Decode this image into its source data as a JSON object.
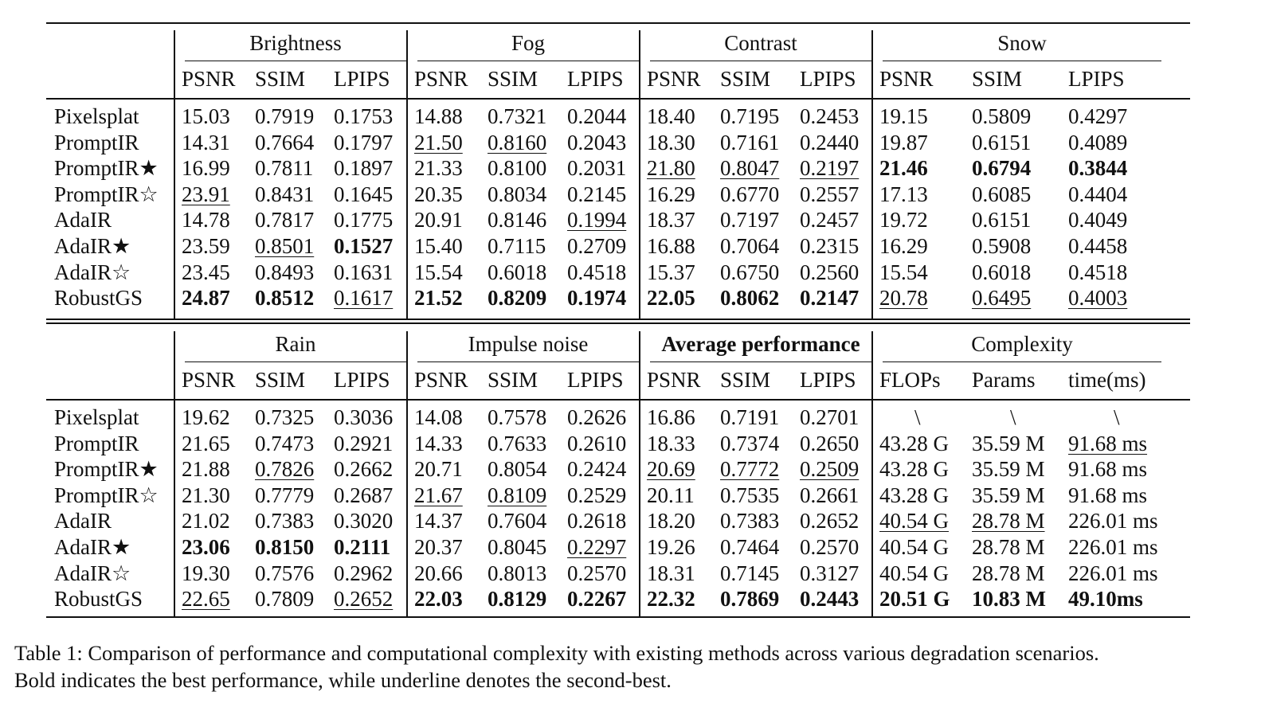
{
  "table": {
    "top_block": {
      "groups": [
        {
          "label": "Brightness",
          "bold": false
        },
        {
          "label": "Fog",
          "bold": false
        },
        {
          "label": "Contrast",
          "bold": false
        },
        {
          "label": "Snow",
          "bold": false
        }
      ],
      "subheaders": [
        "PSNR",
        "SSIM",
        "LPIPS",
        "PSNR",
        "SSIM",
        "LPIPS",
        "PSNR",
        "SSIM",
        "LPIPS",
        "PSNR",
        "SSIM",
        "LPIPS"
      ],
      "rows": [
        {
          "method": "Pixelsplat",
          "cells": [
            {
              "v": "15.03",
              "s": ""
            },
            {
              "v": "0.7919",
              "s": ""
            },
            {
              "v": "0.1753",
              "s": ""
            },
            {
              "v": "14.88",
              "s": ""
            },
            {
              "v": "0.7321",
              "s": ""
            },
            {
              "v": "0.2044",
              "s": ""
            },
            {
              "v": "18.40",
              "s": ""
            },
            {
              "v": "0.7195",
              "s": ""
            },
            {
              "v": "0.2453",
              "s": ""
            },
            {
              "v": "19.15",
              "s": ""
            },
            {
              "v": "0.5809",
              "s": ""
            },
            {
              "v": "0.4297",
              "s": ""
            }
          ]
        },
        {
          "method": "PromptIR",
          "cells": [
            {
              "v": "14.31",
              "s": ""
            },
            {
              "v": "0.7664",
              "s": ""
            },
            {
              "v": "0.1797",
              "s": ""
            },
            {
              "v": "21.50",
              "s": "u"
            },
            {
              "v": "0.8160",
              "s": "u"
            },
            {
              "v": "0.2043",
              "s": ""
            },
            {
              "v": "18.30",
              "s": ""
            },
            {
              "v": "0.7161",
              "s": ""
            },
            {
              "v": "0.2440",
              "s": ""
            },
            {
              "v": "19.87",
              "s": ""
            },
            {
              "v": "0.6151",
              "s": ""
            },
            {
              "v": "0.4089",
              "s": ""
            }
          ]
        },
        {
          "method": "PromptIR★",
          "cells": [
            {
              "v": "16.99",
              "s": ""
            },
            {
              "v": "0.7811",
              "s": ""
            },
            {
              "v": "0.1897",
              "s": ""
            },
            {
              "v": "21.33",
              "s": ""
            },
            {
              "v": "0.8100",
              "s": ""
            },
            {
              "v": "0.2031",
              "s": ""
            },
            {
              "v": "21.80",
              "s": "u"
            },
            {
              "v": "0.8047",
              "s": "u"
            },
            {
              "v": "0.2197",
              "s": "u"
            },
            {
              "v": "21.46",
              "s": "b"
            },
            {
              "v": "0.6794",
              "s": "b"
            },
            {
              "v": "0.3844",
              "s": "b"
            }
          ]
        },
        {
          "method": "PromptIR☆",
          "cells": [
            {
              "v": "23.91",
              "s": "u"
            },
            {
              "v": "0.8431",
              "s": ""
            },
            {
              "v": "0.1645",
              "s": ""
            },
            {
              "v": "20.35",
              "s": ""
            },
            {
              "v": "0.8034",
              "s": ""
            },
            {
              "v": "0.2145",
              "s": ""
            },
            {
              "v": "16.29",
              "s": ""
            },
            {
              "v": "0.6770",
              "s": ""
            },
            {
              "v": "0.2557",
              "s": ""
            },
            {
              "v": "17.13",
              "s": ""
            },
            {
              "v": "0.6085",
              "s": ""
            },
            {
              "v": "0.4404",
              "s": ""
            }
          ]
        },
        {
          "method": "AdaIR",
          "cells": [
            {
              "v": "14.78",
              "s": ""
            },
            {
              "v": "0.7817",
              "s": ""
            },
            {
              "v": "0.1775",
              "s": ""
            },
            {
              "v": "20.91",
              "s": ""
            },
            {
              "v": "0.8146",
              "s": ""
            },
            {
              "v": "0.1994",
              "s": "u"
            },
            {
              "v": "18.37",
              "s": ""
            },
            {
              "v": "0.7197",
              "s": ""
            },
            {
              "v": "0.2457",
              "s": ""
            },
            {
              "v": "19.72",
              "s": ""
            },
            {
              "v": "0.6151",
              "s": ""
            },
            {
              "v": "0.4049",
              "s": ""
            }
          ]
        },
        {
          "method": "AdaIR★",
          "cells": [
            {
              "v": "23.59",
              "s": ""
            },
            {
              "v": "0.8501",
              "s": "u"
            },
            {
              "v": "0.1527",
              "s": "b"
            },
            {
              "v": "15.40",
              "s": ""
            },
            {
              "v": "0.7115",
              "s": ""
            },
            {
              "v": "0.2709",
              "s": ""
            },
            {
              "v": "16.88",
              "s": ""
            },
            {
              "v": "0.7064",
              "s": ""
            },
            {
              "v": "0.2315",
              "s": ""
            },
            {
              "v": "16.29",
              "s": ""
            },
            {
              "v": "0.5908",
              "s": ""
            },
            {
              "v": "0.4458",
              "s": ""
            }
          ]
        },
        {
          "method": "AdaIR☆",
          "cells": [
            {
              "v": "23.45",
              "s": ""
            },
            {
              "v": "0.8493",
              "s": ""
            },
            {
              "v": "0.1631",
              "s": ""
            },
            {
              "v": "15.54",
              "s": ""
            },
            {
              "v": "0.6018",
              "s": ""
            },
            {
              "v": "0.4518",
              "s": ""
            },
            {
              "v": "15.37",
              "s": ""
            },
            {
              "v": "0.6750",
              "s": ""
            },
            {
              "v": "0.2560",
              "s": ""
            },
            {
              "v": "15.54",
              "s": ""
            },
            {
              "v": "0.6018",
              "s": ""
            },
            {
              "v": "0.4518",
              "s": ""
            }
          ]
        },
        {
          "method": "RobustGS",
          "cells": [
            {
              "v": "24.87",
              "s": "b"
            },
            {
              "v": "0.8512",
              "s": "b"
            },
            {
              "v": "0.1617",
              "s": "u"
            },
            {
              "v": "21.52",
              "s": "b"
            },
            {
              "v": "0.8209",
              "s": "b"
            },
            {
              "v": "0.1974",
              "s": "b"
            },
            {
              "v": "22.05",
              "s": "b"
            },
            {
              "v": "0.8062",
              "s": "b"
            },
            {
              "v": "0.2147",
              "s": "b"
            },
            {
              "v": "20.78",
              "s": "u"
            },
            {
              "v": "0.6495",
              "s": "u"
            },
            {
              "v": "0.4003",
              "s": "u"
            }
          ]
        }
      ]
    },
    "bottom_block": {
      "groups": [
        {
          "label": "Rain",
          "bold": false
        },
        {
          "label": "Impulse noise",
          "bold": false
        },
        {
          "label": "Average performance",
          "bold": true
        },
        {
          "label": "Complexity",
          "bold": false
        }
      ],
      "subheaders": [
        "PSNR",
        "SSIM",
        "LPIPS",
        "PSNR",
        "SSIM",
        "LPIPS",
        "PSNR",
        "SSIM",
        "LPIPS",
        "FLOPs",
        "Params",
        "time(ms)"
      ],
      "rows": [
        {
          "method": "Pixelsplat",
          "cells": [
            {
              "v": "19.62",
              "s": ""
            },
            {
              "v": "0.7325",
              "s": ""
            },
            {
              "v": "0.3036",
              "s": ""
            },
            {
              "v": "14.08",
              "s": ""
            },
            {
              "v": "0.7578",
              "s": ""
            },
            {
              "v": "0.2626",
              "s": ""
            },
            {
              "v": "16.86",
              "s": ""
            },
            {
              "v": "0.7191",
              "s": ""
            },
            {
              "v": "0.2701",
              "s": ""
            },
            {
              "v": "\\",
              "s": ""
            },
            {
              "v": "\\",
              "s": ""
            },
            {
              "v": "\\",
              "s": ""
            }
          ]
        },
        {
          "method": "PromptIR",
          "cells": [
            {
              "v": "21.65",
              "s": ""
            },
            {
              "v": "0.7473",
              "s": ""
            },
            {
              "v": "0.2921",
              "s": ""
            },
            {
              "v": "14.33",
              "s": ""
            },
            {
              "v": "0.7633",
              "s": ""
            },
            {
              "v": "0.2610",
              "s": ""
            },
            {
              "v": "18.33",
              "s": ""
            },
            {
              "v": "0.7374",
              "s": ""
            },
            {
              "v": "0.2650",
              "s": ""
            },
            {
              "v": "43.28 G",
              "s": ""
            },
            {
              "v": "35.59 M",
              "s": ""
            },
            {
              "v": "91.68 ms",
              "s": "u"
            }
          ]
        },
        {
          "method": "PromptIR★",
          "cells": [
            {
              "v": "21.88",
              "s": ""
            },
            {
              "v": "0.7826",
              "s": "u"
            },
            {
              "v": "0.2662",
              "s": ""
            },
            {
              "v": "20.71",
              "s": ""
            },
            {
              "v": "0.8054",
              "s": ""
            },
            {
              "v": "0.2424",
              "s": ""
            },
            {
              "v": "20.69",
              "s": "u"
            },
            {
              "v": "0.7772",
              "s": "u"
            },
            {
              "v": "0.2509",
              "s": "u"
            },
            {
              "v": "43.28 G",
              "s": ""
            },
            {
              "v": "35.59 M",
              "s": ""
            },
            {
              "v": "91.68 ms",
              "s": ""
            }
          ]
        },
        {
          "method": "PromptIR☆",
          "cells": [
            {
              "v": "21.30",
              "s": ""
            },
            {
              "v": "0.7779",
              "s": ""
            },
            {
              "v": "0.2687",
              "s": ""
            },
            {
              "v": "21.67",
              "s": "u"
            },
            {
              "v": "0.8109",
              "s": "u"
            },
            {
              "v": "0.2529",
              "s": ""
            },
            {
              "v": "20.11",
              "s": ""
            },
            {
              "v": "0.7535",
              "s": ""
            },
            {
              "v": "0.2661",
              "s": ""
            },
            {
              "v": "43.28 G",
              "s": ""
            },
            {
              "v": "35.59 M",
              "s": ""
            },
            {
              "v": "91.68 ms",
              "s": ""
            }
          ]
        },
        {
          "method": "AdaIR",
          "cells": [
            {
              "v": "21.02",
              "s": ""
            },
            {
              "v": "0.7383",
              "s": ""
            },
            {
              "v": "0.3020",
              "s": ""
            },
            {
              "v": "14.37",
              "s": ""
            },
            {
              "v": "0.7604",
              "s": ""
            },
            {
              "v": "0.2618",
              "s": ""
            },
            {
              "v": "18.20",
              "s": ""
            },
            {
              "v": "0.7383",
              "s": ""
            },
            {
              "v": "0.2652",
              "s": ""
            },
            {
              "v": "40.54 G",
              "s": "u"
            },
            {
              "v": "28.78 M",
              "s": "u"
            },
            {
              "v": "226.01 ms",
              "s": ""
            }
          ]
        },
        {
          "method": "AdaIR★",
          "cells": [
            {
              "v": "23.06",
              "s": "b"
            },
            {
              "v": "0.8150",
              "s": "b"
            },
            {
              "v": "0.2111",
              "s": "b"
            },
            {
              "v": "20.37",
              "s": ""
            },
            {
              "v": "0.8045",
              "s": ""
            },
            {
              "v": "0.2297",
              "s": "u"
            },
            {
              "v": "19.26",
              "s": ""
            },
            {
              "v": "0.7464",
              "s": ""
            },
            {
              "v": "0.2570",
              "s": ""
            },
            {
              "v": "40.54 G",
              "s": ""
            },
            {
              "v": "28.78 M",
              "s": ""
            },
            {
              "v": "226.01 ms",
              "s": ""
            }
          ]
        },
        {
          "method": "AdaIR☆",
          "cells": [
            {
              "v": "19.30",
              "s": ""
            },
            {
              "v": "0.7576",
              "s": ""
            },
            {
              "v": "0.2962",
              "s": ""
            },
            {
              "v": "20.66",
              "s": ""
            },
            {
              "v": "0.8013",
              "s": ""
            },
            {
              "v": "0.2570",
              "s": ""
            },
            {
              "v": "18.31",
              "s": ""
            },
            {
              "v": "0.7145",
              "s": ""
            },
            {
              "v": "0.3127",
              "s": ""
            },
            {
              "v": "40.54 G",
              "s": ""
            },
            {
              "v": "28.78 M",
              "s": ""
            },
            {
              "v": "226.01 ms",
              "s": ""
            }
          ]
        },
        {
          "method": "RobustGS",
          "cells": [
            {
              "v": "22.65",
              "s": "u"
            },
            {
              "v": "0.7809",
              "s": ""
            },
            {
              "v": "0.2652",
              "s": "u"
            },
            {
              "v": "22.03",
              "s": "b"
            },
            {
              "v": "0.8129",
              "s": "b"
            },
            {
              "v": "0.2267",
              "s": "b"
            },
            {
              "v": "22.32",
              "s": "b"
            },
            {
              "v": "0.7869",
              "s": "b"
            },
            {
              "v": "0.2443",
              "s": "b"
            },
            {
              "v": "20.51 G",
              "s": "b"
            },
            {
              "v": "10.83 M",
              "s": "b"
            },
            {
              "v": "49.10ms",
              "s": "b"
            }
          ]
        }
      ]
    }
  },
  "caption": {
    "line1": "Table 1: Comparison of performance and computational complexity with existing methods across various degradation scenarios.",
    "line2": "Bold indicates the best performance, while underline denotes the second-best."
  }
}
